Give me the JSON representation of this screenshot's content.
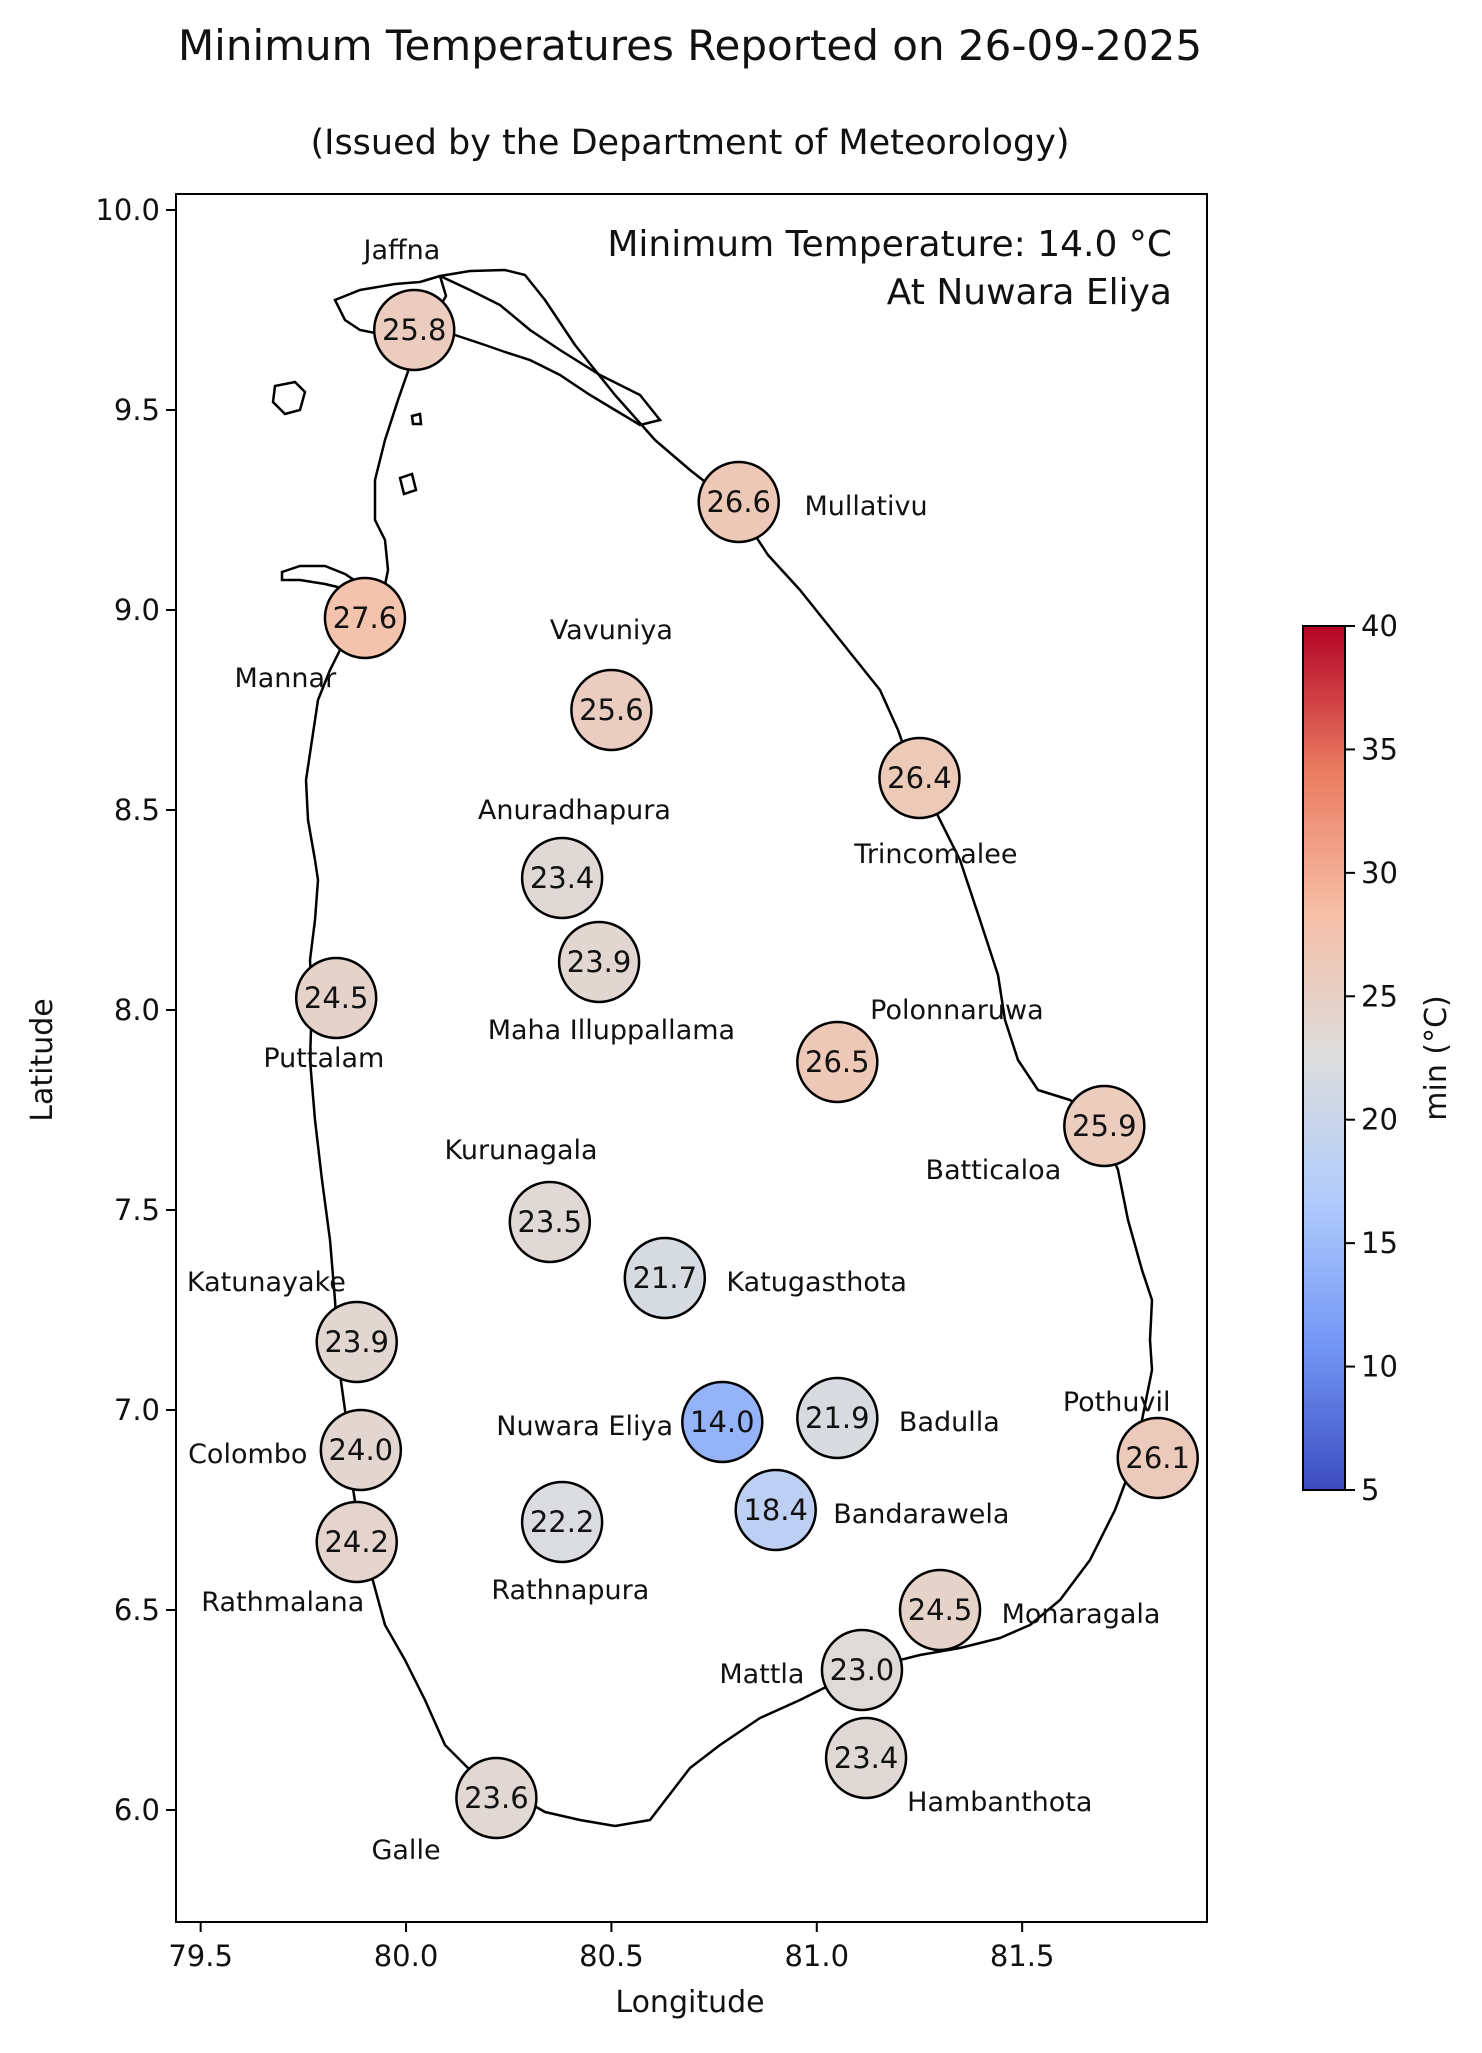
{
  "title": "Minimum Temperatures Reported on 26-09-2025",
  "subtitle": "(Issued by the Department of Meteorology)",
  "annotation": {
    "line1": "Minimum Temperature: 14.0 °C",
    "line2": "At Nuwara Eliya"
  },
  "colormap": {
    "name": "coolwarm",
    "stops": [
      "#3b4cc0",
      "#7396f5",
      "#b0cbfc",
      "#dcdddd",
      "#f6bfa6",
      "#ea7b60",
      "#b40426"
    ]
  },
  "chart_data": {
    "type": "scatter",
    "xlabel": "Longitude",
    "ylabel": "Latitude",
    "xlim": [
      79.44,
      81.95
    ],
    "ylim": [
      5.72,
      10.04
    ],
    "xticks": [
      "79.5",
      "80.0",
      "80.5",
      "81.0",
      "81.5"
    ],
    "yticks": [
      "6.0",
      "6.5",
      "7.0",
      "7.5",
      "8.0",
      "8.5",
      "9.0",
      "9.5",
      "10.0"
    ],
    "colorbar": {
      "label": "min (°C)",
      "range": [
        5,
        40
      ],
      "ticks": [
        "5",
        "10",
        "15",
        "20",
        "25",
        "30",
        "35",
        "40"
      ]
    },
    "stations": [
      {
        "name": "Jaffna",
        "lon": 80.02,
        "lat": 9.7,
        "value": "25.8",
        "dx": -0.03,
        "dy": 0.2,
        "anchor": "middle"
      },
      {
        "name": "Mullativu",
        "lon": 80.81,
        "lat": 9.27,
        "value": "26.6",
        "dx": 0.16,
        "dy": -0.01,
        "anchor": "start"
      },
      {
        "name": "Mannar",
        "lon": 79.9,
        "lat": 8.98,
        "value": "27.6",
        "dx": -0.07,
        "dy": -0.15,
        "anchor": "end"
      },
      {
        "name": "Vavuniya",
        "lon": 80.5,
        "lat": 8.75,
        "value": "25.6",
        "dx": 0.0,
        "dy": 0.2,
        "anchor": "middle"
      },
      {
        "name": "Trincomalee",
        "lon": 81.25,
        "lat": 8.58,
        "value": "26.4",
        "dx": 0.04,
        "dy": -0.19,
        "anchor": "middle"
      },
      {
        "name": "Anuradhapura",
        "lon": 80.38,
        "lat": 8.33,
        "value": "23.4",
        "dx": 0.03,
        "dy": 0.17,
        "anchor": "middle"
      },
      {
        "name": "Maha Illuppallama",
        "lon": 80.47,
        "lat": 8.12,
        "value": "23.9",
        "dx": 0.03,
        "dy": -0.17,
        "anchor": "middle"
      },
      {
        "name": "Puttalam",
        "lon": 79.83,
        "lat": 8.03,
        "value": "24.5",
        "dx": -0.03,
        "dy": -0.15,
        "anchor": "middle"
      },
      {
        "name": "Polonnaruwa",
        "lon": 81.05,
        "lat": 7.87,
        "value": "26.5",
        "dx": 0.08,
        "dy": 0.13,
        "anchor": "start"
      },
      {
        "name": "Batticaloa",
        "lon": 81.7,
        "lat": 7.71,
        "value": "25.9",
        "dx": -0.27,
        "dy": -0.11,
        "anchor": "middle"
      },
      {
        "name": "Kurunagala",
        "lon": 80.35,
        "lat": 7.47,
        "value": "23.5",
        "dx": -0.07,
        "dy": 0.18,
        "anchor": "middle"
      },
      {
        "name": "Katugasthota",
        "lon": 80.63,
        "lat": 7.33,
        "value": "21.7",
        "dx": 0.15,
        "dy": -0.01,
        "anchor": "start"
      },
      {
        "name": "Katunayake",
        "lon": 79.88,
        "lat": 7.17,
        "value": "23.9",
        "dx": -0.22,
        "dy": 0.15,
        "anchor": "middle"
      },
      {
        "name": "Nuwara Eliya",
        "lon": 80.77,
        "lat": 6.97,
        "value": "14.0",
        "dx": -0.12,
        "dy": -0.01,
        "anchor": "end"
      },
      {
        "name": "Badulla",
        "lon": 81.05,
        "lat": 6.98,
        "value": "21.9",
        "dx": 0.15,
        "dy": -0.01,
        "anchor": "start"
      },
      {
        "name": "Pothuvil",
        "lon": 81.83,
        "lat": 6.88,
        "value": "26.1",
        "dx": -0.1,
        "dy": 0.14,
        "anchor": "middle"
      },
      {
        "name": "Colombo",
        "lon": 79.89,
        "lat": 6.9,
        "value": "24.0",
        "dx": -0.13,
        "dy": -0.01,
        "anchor": "end"
      },
      {
        "name": "Bandarawela",
        "lon": 80.9,
        "lat": 6.75,
        "value": "18.4",
        "dx": 0.14,
        "dy": -0.01,
        "anchor": "start"
      },
      {
        "name": "Rathnapura",
        "lon": 80.38,
        "lat": 6.72,
        "value": "22.2",
        "dx": 0.02,
        "dy": -0.17,
        "anchor": "middle"
      },
      {
        "name": "Rathmalana",
        "lon": 79.88,
        "lat": 6.67,
        "value": "24.2",
        "dx": -0.18,
        "dy": -0.15,
        "anchor": "middle"
      },
      {
        "name": "Monaragala",
        "lon": 81.3,
        "lat": 6.5,
        "value": "24.5",
        "dx": 0.15,
        "dy": -0.01,
        "anchor": "start"
      },
      {
        "name": "Mattla",
        "lon": 81.11,
        "lat": 6.35,
        "value": "23.0",
        "dx": -0.14,
        "dy": -0.01,
        "anchor": "end"
      },
      {
        "name": "Hambanthota",
        "lon": 81.12,
        "lat": 6.13,
        "value": "23.4",
        "dx": 0.1,
        "dy": -0.11,
        "anchor": "start"
      },
      {
        "name": "Galle",
        "lon": 80.22,
        "lat": 6.03,
        "value": "23.6",
        "dx": -0.22,
        "dy": -0.13,
        "anchor": "middle"
      }
    ]
  }
}
